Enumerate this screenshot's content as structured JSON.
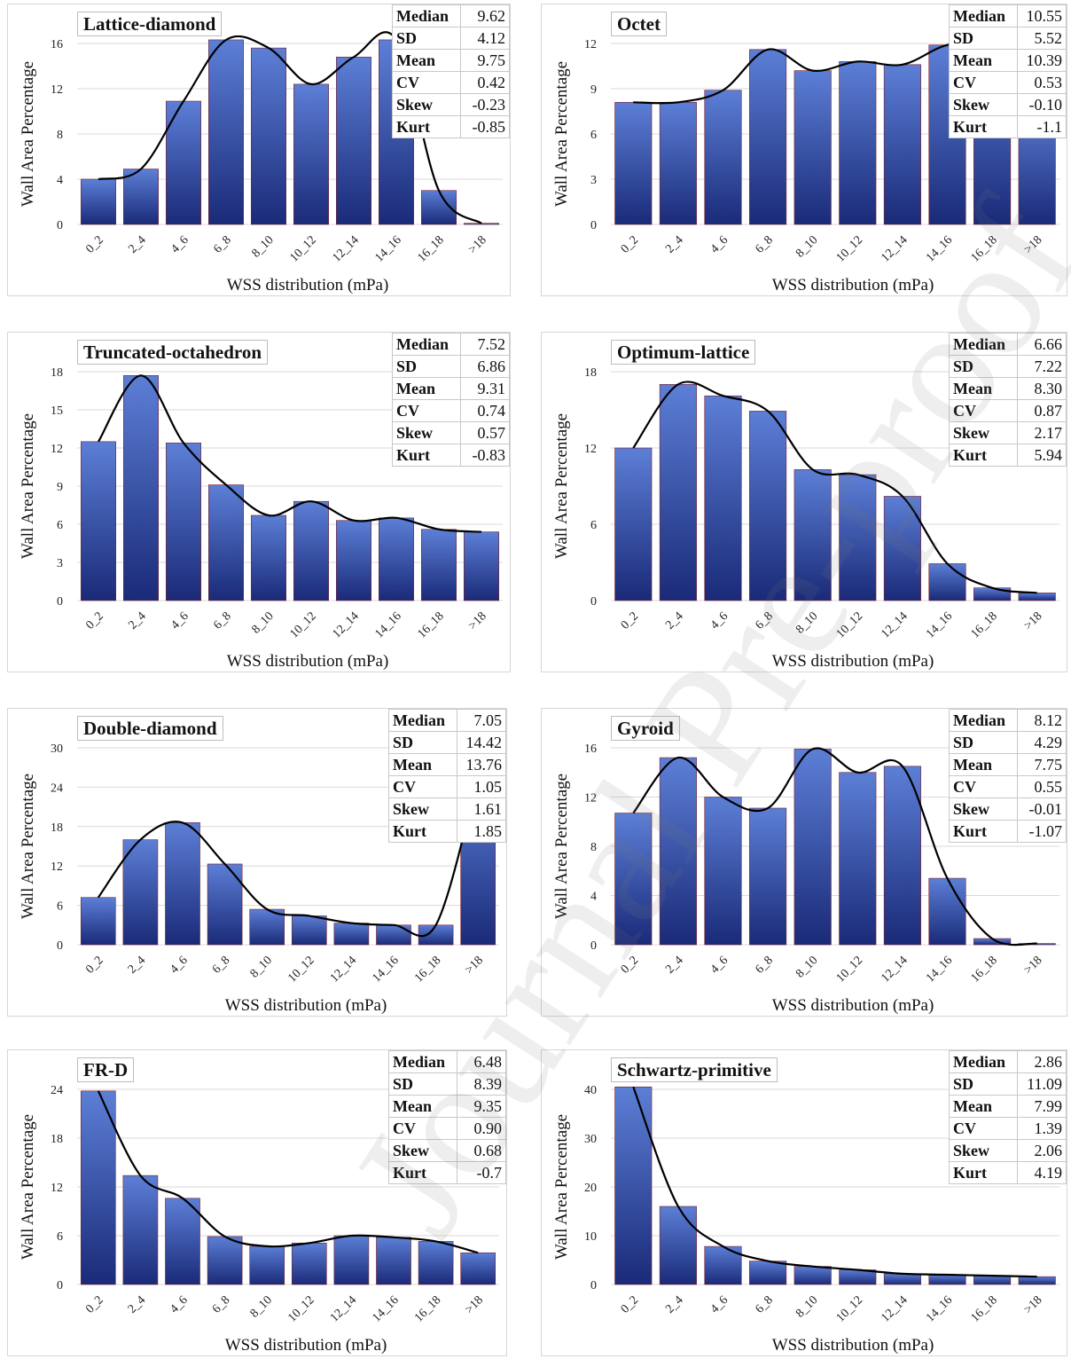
{
  "common": {
    "xlabel": "WSS distribution (mPa)",
    "ylabel": "Wall Area Percentage",
    "stat_keys": [
      "Median",
      "SD",
      "Mean",
      "CV",
      "Skew",
      "Kurt"
    ]
  },
  "watermark": "Journal Pre-proof",
  "colors": {
    "bar_top": "#5c7fd6",
    "bar_bottom": "#1a2a78",
    "curve": "#000000",
    "grid": "#d9d9d9"
  },
  "chart_data": [
    {
      "type": "bar",
      "title": "Lattice-diamond",
      "categories": [
        "0_2",
        "2_4",
        "4_6",
        "6_8",
        "8_10",
        "10_12",
        "12_14",
        "14_16",
        "16_18",
        ">18"
      ],
      "values": [
        4.0,
        4.9,
        10.9,
        17.0,
        15.6,
        12.4,
        14.8,
        17.1,
        3.0,
        0.1
      ],
      "ylim": [
        0,
        16
      ],
      "yticks": [
        0,
        4,
        8,
        12,
        16
      ],
      "xlabel": "WSS distribution (mPa)",
      "ylabel": "Wall Area Percentage",
      "stats": [
        "9.62",
        "4.12",
        "9.75",
        "0.42",
        "-0.23",
        "-0.85"
      ]
    },
    {
      "type": "bar",
      "title": "Octet",
      "categories": [
        "0_2",
        "2_4",
        "4_6",
        "6_8",
        "8_10",
        "10_12",
        "12_14",
        "14_16",
        "16_18",
        ">18"
      ],
      "values": [
        8.1,
        8.1,
        8.9,
        11.6,
        10.2,
        10.8,
        10.6,
        11.9,
        12.0,
        8.0
      ],
      "ylim": [
        0,
        12
      ],
      "yticks": [
        0,
        3,
        6,
        9,
        12
      ],
      "xlabel": "WSS distribution (mPa)",
      "ylabel": "Wall Area Percentage",
      "stats": [
        "10.55",
        "5.52",
        "10.39",
        "0.53",
        "-0.10",
        "-1.1"
      ]
    },
    {
      "type": "bar",
      "title": "Truncated-octahedron",
      "categories": [
        "0_2",
        "2_4",
        "4_6",
        "6_8",
        "8_10",
        "10_12",
        "12_14",
        "14_16",
        "16_18",
        ">18"
      ],
      "values": [
        12.5,
        17.7,
        12.4,
        9.1,
        6.7,
        7.8,
        6.3,
        6.5,
        5.6,
        5.4
      ],
      "ylim": [
        0,
        18
      ],
      "yticks": [
        0,
        3,
        6,
        9,
        12,
        15,
        18
      ],
      "xlabel": "WSS distribution (mPa)",
      "ylabel": "Wall Area Percentage",
      "stats": [
        "7.52",
        "6.86",
        "9.31",
        "0.74",
        "0.57",
        "-0.83"
      ]
    },
    {
      "type": "bar",
      "title": "Optimum-lattice",
      "categories": [
        "0_2",
        "2_4",
        "4_6",
        "6_8",
        "8_10",
        "10_12",
        "12_14",
        "14_16",
        "16_18",
        ">18"
      ],
      "values": [
        12.0,
        17.0,
        16.1,
        14.9,
        10.3,
        9.9,
        8.2,
        2.9,
        1.0,
        0.6
      ],
      "ylim": [
        0,
        18
      ],
      "yticks": [
        0,
        6,
        12,
        18
      ],
      "xlabel": "WSS distribution (mPa)",
      "ylabel": "Wall Area Percentage",
      "stats": [
        "6.66",
        "7.22",
        "8.30",
        "0.87",
        "2.17",
        "5.94"
      ]
    },
    {
      "type": "bar",
      "title": "Double-diamond",
      "categories": [
        "0_2",
        "2_4",
        "4_6",
        "6_8",
        "8_10",
        "10_12",
        "12_14",
        "14_16",
        "16_18",
        ">18"
      ],
      "values": [
        7.2,
        16.0,
        18.6,
        12.3,
        5.4,
        4.4,
        3.3,
        3.0,
        3.0,
        25.5
      ],
      "ylim": [
        0,
        30
      ],
      "yticks": [
        0,
        6,
        12,
        18,
        24,
        30
      ],
      "xlabel": "WSS distribution (mPa)",
      "ylabel": "Wall Area Percentage",
      "stats": [
        "7.05",
        "14.42",
        "13.76",
        "1.05",
        "1.61",
        "1.85"
      ]
    },
    {
      "type": "bar",
      "title": "Gyroid",
      "categories": [
        "0_2",
        "2_4",
        "4_6",
        "6_8",
        "8_10",
        "10_12",
        "12_14",
        "14_16",
        "16_18",
        ">18"
      ],
      "values": [
        10.7,
        15.2,
        12.0,
        11.1,
        15.9,
        14.0,
        14.5,
        5.4,
        0.5,
        0.1
      ],
      "ylim": [
        0,
        16
      ],
      "yticks": [
        0,
        4,
        8,
        12,
        16
      ],
      "xlabel": "WSS distribution (mPa)",
      "ylabel": "Wall Area Percentage",
      "stats": [
        "8.12",
        "4.29",
        "7.75",
        "0.55",
        "-0.01",
        "-1.07"
      ]
    },
    {
      "type": "bar",
      "title": "FR-D",
      "categories": [
        "0_2",
        "2_4",
        "4_6",
        "6_8",
        "8_10",
        "10_12",
        "12_14",
        "14_16",
        "16_18",
        ">18"
      ],
      "values": [
        23.8,
        13.4,
        10.6,
        5.9,
        4.7,
        5.1,
        6.0,
        5.8,
        5.3,
        3.9
      ],
      "ylim": [
        0,
        24
      ],
      "yticks": [
        0,
        6,
        12,
        18,
        24
      ],
      "xlabel": "WSS distribution (mPa)",
      "ylabel": "Wall Area Percentage",
      "stats": [
        "6.48",
        "8.39",
        "9.35",
        "0.90",
        "0.68",
        "-0.7"
      ]
    },
    {
      "type": "bar",
      "title": "Schwartz-primitive",
      "categories": [
        "0_2",
        "2_4",
        "4_6",
        "6_8",
        "8_10",
        "10_12",
        "12_14",
        "14_16",
        "16_18",
        ">18"
      ],
      "values": [
        40.5,
        16.0,
        7.8,
        4.8,
        3.7,
        3.0,
        2.2,
        2.0,
        1.8,
        1.6
      ],
      "ylim": [
        0,
        40
      ],
      "yticks": [
        0,
        10,
        20,
        30,
        40
      ],
      "xlabel": "WSS distribution (mPa)",
      "ylabel": "Wall Area Percentage",
      "stats": [
        "2.86",
        "11.09",
        "7.99",
        "1.39",
        "2.06",
        "4.19"
      ]
    }
  ]
}
